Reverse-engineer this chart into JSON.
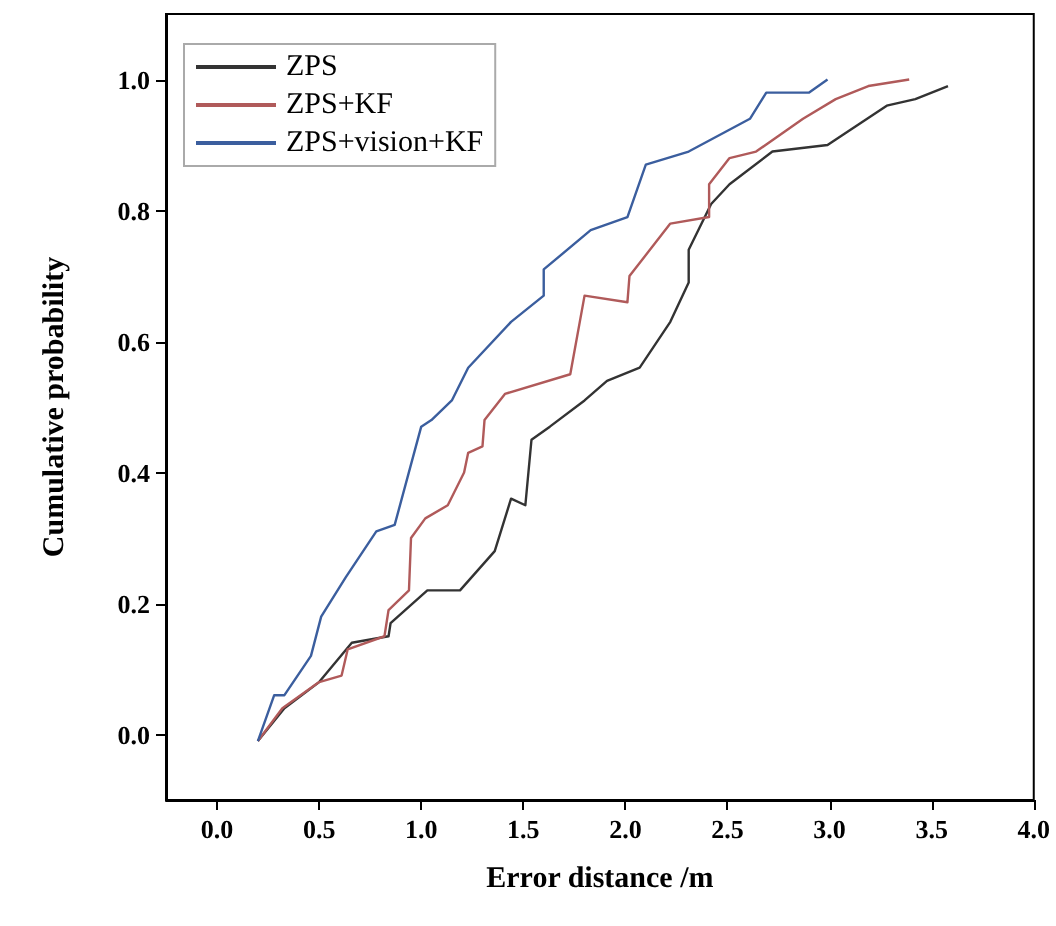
{
  "chart_data": {
    "type": "line",
    "xlabel": "Error distance /m",
    "ylabel": "Cumulative probability",
    "xlim": [
      -0.25,
      4.0
    ],
    "xticks": [
      {
        "value": 0,
        "label": "0.0"
      },
      {
        "value": 0.5,
        "label": "0.5"
      },
      {
        "value": 1,
        "label": "1.0"
      },
      {
        "value": 1.5,
        "label": "1.5"
      },
      {
        "value": 2,
        "label": "2.0"
      },
      {
        "value": 2.5,
        "label": "2.5"
      },
      {
        "value": 3,
        "label": "3.0"
      },
      {
        "value": 3.5,
        "label": "3.5"
      },
      {
        "value": 4,
        "label": "4.0"
      }
    ],
    "ylim": [
      -0.1,
      1.1
    ],
    "yticks": [
      {
        "value": 0,
        "label": "0.0"
      },
      {
        "value": 0.2,
        "label": "0.2"
      },
      {
        "value": 0.4,
        "label": "0.4"
      },
      {
        "value": 0.6,
        "label": "0.6"
      },
      {
        "value": 0.8,
        "label": "0.8"
      },
      {
        "value": 1,
        "label": "1.0"
      }
    ],
    "grid": false,
    "legend": "top left",
    "marker": "none",
    "line_style": "solid",
    "series": [
      {
        "name": "ZPS",
        "color": "#333333",
        "x": [
          0.2,
          0.33,
          0.5,
          0.66,
          0.84,
          0.85,
          1.03,
          1.19,
          1.36,
          1.44,
          1.51,
          1.54,
          1.63,
          1.8,
          1.91,
          2.07,
          2.22,
          2.31,
          2.31,
          2.42,
          2.51,
          2.72,
          2.99,
          3.28,
          3.42,
          3.58
        ],
        "values": [
          -0.01,
          0.04,
          0.08,
          0.14,
          0.15,
          0.17,
          0.22,
          0.22,
          0.28,
          0.36,
          0.35,
          0.45,
          0.47,
          0.51,
          0.54,
          0.56,
          0.63,
          0.69,
          0.74,
          0.81,
          0.84,
          0.89,
          0.9,
          0.96,
          0.97,
          0.99
        ]
      },
      {
        "name": "ZPS+KF",
        "color": "#b05a5a",
        "x": [
          0.2,
          0.32,
          0.5,
          0.61,
          0.64,
          0.82,
          0.84,
          0.94,
          0.95,
          1.02,
          1.13,
          1.21,
          1.23,
          1.3,
          1.31,
          1.41,
          1.73,
          1.8,
          2.01,
          2.02,
          2.22,
          2.41,
          2.41,
          2.51,
          2.64,
          2.87,
          3.03,
          3.19,
          3.39
        ],
        "values": [
          -0.01,
          0.04,
          0.08,
          0.09,
          0.13,
          0.15,
          0.19,
          0.22,
          0.3,
          0.33,
          0.35,
          0.4,
          0.43,
          0.44,
          0.48,
          0.52,
          0.55,
          0.67,
          0.66,
          0.7,
          0.78,
          0.79,
          0.84,
          0.88,
          0.89,
          0.94,
          0.97,
          0.99,
          1.0
        ]
      },
      {
        "name": "ZPS+vision+KF",
        "color": "#3b5e9e",
        "x": [
          0.2,
          0.28,
          0.33,
          0.46,
          0.51,
          0.63,
          0.78,
          0.87,
          1.0,
          1.05,
          1.15,
          1.23,
          1.44,
          1.6,
          1.6,
          1.83,
          2.01,
          2.1,
          2.31,
          2.61,
          2.69,
          2.9,
          2.99
        ],
        "values": [
          -0.01,
          0.06,
          0.06,
          0.12,
          0.18,
          0.24,
          0.31,
          0.32,
          0.47,
          0.48,
          0.51,
          0.56,
          0.63,
          0.67,
          0.71,
          0.77,
          0.79,
          0.87,
          0.89,
          0.94,
          0.98,
          0.98,
          1.0
        ]
      }
    ]
  }
}
